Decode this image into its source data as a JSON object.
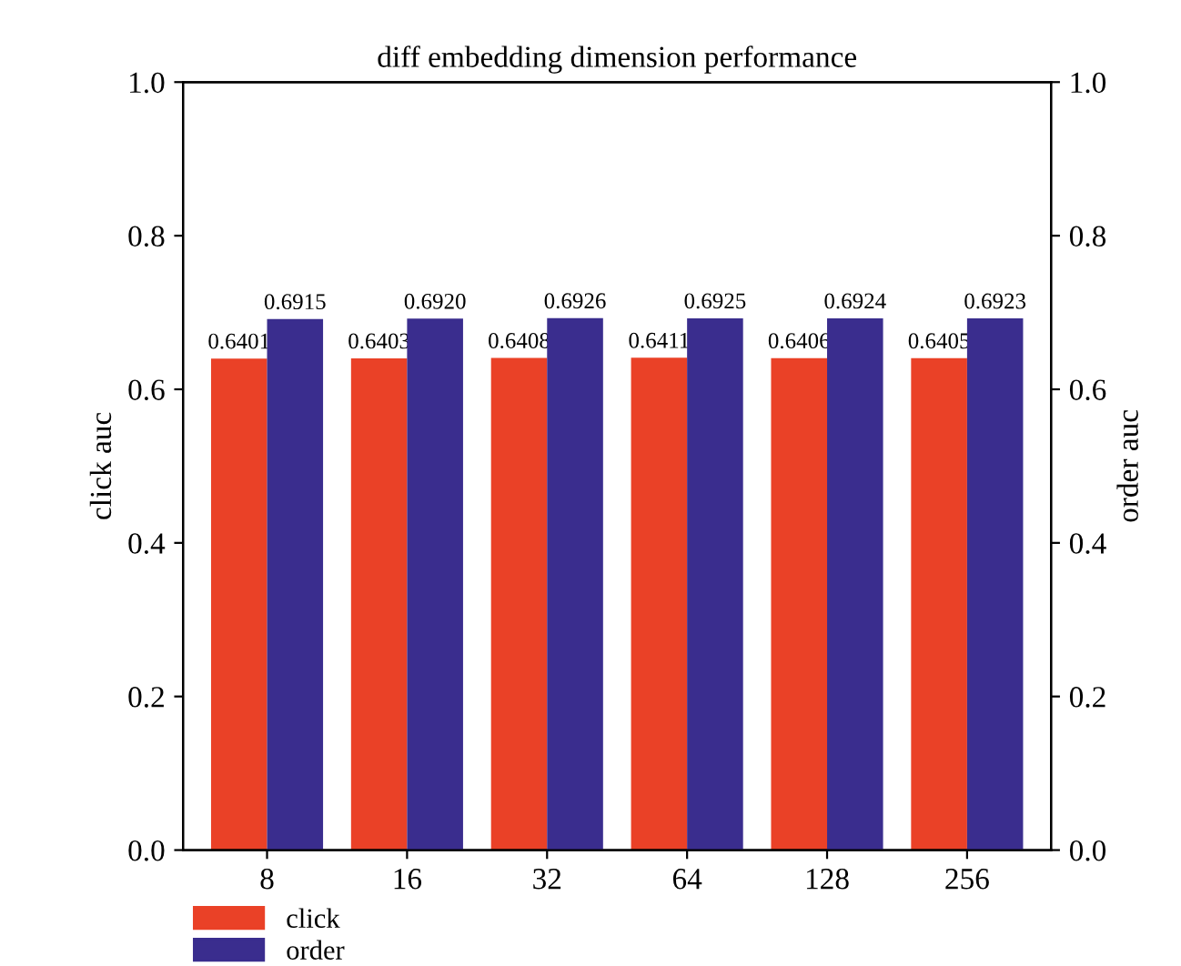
{
  "chart_data": {
    "type": "bar",
    "title": "diff embedding dimension performance",
    "ylabel": "click auc",
    "y2label": "order auc",
    "categories": [
      "8",
      "16",
      "32",
      "64",
      "128",
      "256"
    ],
    "series": [
      {
        "name": "click",
        "color": "#ea4127",
        "values": [
          0.6401,
          0.6403,
          0.6408,
          0.6411,
          0.6406,
          0.6405
        ],
        "value_labels": [
          "0.6401",
          "0.6403",
          "0.6408",
          "0.6411",
          "0.6406",
          "0.6405"
        ]
      },
      {
        "name": "order",
        "color": "#3a2d8e",
        "axis": "y2",
        "values": [
          0.6915,
          0.692,
          0.6926,
          0.6925,
          0.6924,
          0.6923
        ],
        "value_labels": [
          "0.6915",
          "0.6920",
          "0.6926",
          "0.6925",
          "0.6924",
          "0.6923"
        ]
      }
    ],
    "ylim": [
      0,
      1
    ],
    "yticks": [
      {
        "value": 0,
        "label": "0.0"
      },
      0.2,
      0.4,
      0.6,
      0.8,
      {
        "value": 1,
        "label": "1.0"
      }
    ],
    "y2lim": [
      0,
      1
    ],
    "y2ticks": [
      {
        "value": 0,
        "label": "0.0"
      },
      0.2,
      0.4,
      0.6,
      0.8,
      {
        "value": 1,
        "label": "1.0"
      }
    ],
    "grid": false,
    "legend": "bottom left"
  }
}
